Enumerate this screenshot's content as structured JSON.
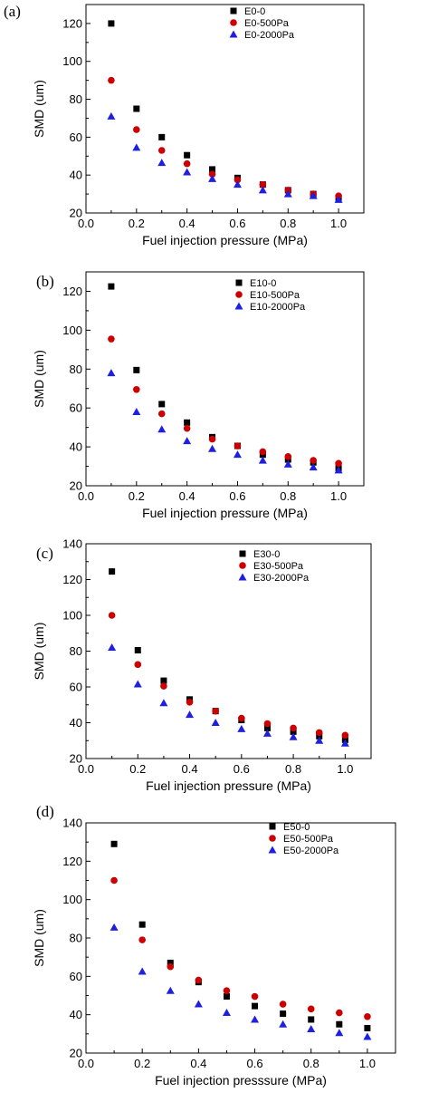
{
  "chart_data": [
    {
      "type": "scatter",
      "panel_label": "(a)",
      "xlabel": "Fuel injection pressure (MPa)",
      "ylabel": "SMD (um)",
      "xlim": [
        0.0,
        1.1
      ],
      "ylim": [
        20,
        130
      ],
      "xticks": [
        "0.0",
        "0.2",
        "0.4",
        "0.6",
        "0.8",
        "1.0"
      ],
      "yticks": [
        "20",
        "40",
        "60",
        "80",
        "100",
        "120"
      ],
      "legend_position": "top-right",
      "x": [
        0.1,
        0.2,
        0.3,
        0.4,
        0.5,
        0.6,
        0.7,
        0.8,
        0.9,
        1.0
      ],
      "series": [
        {
          "name": "E0-0",
          "marker": "square",
          "color": "#000000",
          "values": [
            120,
            75,
            60,
            50.5,
            43,
            38.5,
            35,
            32,
            30,
            28
          ]
        },
        {
          "name": "E0-500Pa",
          "marker": "circle",
          "color": "#cc0000",
          "values": [
            90,
            64,
            53,
            46,
            40.5,
            37.5,
            35,
            32,
            30,
            29
          ]
        },
        {
          "name": "E0-2000Pa",
          "marker": "triangle",
          "color": "#1f1fe0",
          "values": [
            71,
            54.5,
            46.5,
            41.5,
            38,
            35,
            32,
            30,
            29,
            27
          ]
        }
      ]
    },
    {
      "type": "scatter",
      "panel_label": "(b)",
      "xlabel": "Fuel injection pressure (MPa)",
      "ylabel": "SMD (um)",
      "xlim": [
        0.0,
        1.1
      ],
      "ylim": [
        20,
        130
      ],
      "xticks": [
        "0.0",
        "0.2",
        "0.4",
        "0.6",
        "0.8",
        "1.0"
      ],
      "yticks": [
        "20",
        "40",
        "60",
        "80",
        "100",
        "120"
      ],
      "legend_position": "top-right",
      "x": [
        0.1,
        0.2,
        0.3,
        0.4,
        0.5,
        0.6,
        0.7,
        0.8,
        0.9,
        1.0
      ],
      "series": [
        {
          "name": "E10-0",
          "marker": "square",
          "color": "#000000",
          "values": [
            122.5,
            79.5,
            62,
            52.5,
            45,
            40.5,
            36,
            33.5,
            32,
            29
          ]
        },
        {
          "name": "E10-500Pa",
          "marker": "circle",
          "color": "#cc0000",
          "values": [
            95.5,
            69.5,
            57,
            49.5,
            44,
            40.5,
            37.5,
            35,
            33,
            31.5
          ]
        },
        {
          "name": "E10-2000Pa",
          "marker": "triangle",
          "color": "#1f1fe0",
          "values": [
            78,
            58,
            49,
            43,
            39,
            36,
            33,
            31,
            29.5,
            28
          ]
        }
      ]
    },
    {
      "type": "scatter",
      "panel_label": "(c)",
      "xlabel": "Fuel injection pressure (MPa)",
      "ylabel": "SMD (um)",
      "xlim": [
        0.0,
        1.1
      ],
      "ylim": [
        20,
        140
      ],
      "xticks": [
        "0.0",
        "0.2",
        "0.4",
        "0.6",
        "0.8",
        "1.0"
      ],
      "yticks": [
        "20",
        "40",
        "60",
        "80",
        "100",
        "120",
        "140"
      ],
      "legend_position": "top-right",
      "x": [
        0.1,
        0.2,
        0.3,
        0.4,
        0.5,
        0.6,
        0.7,
        0.8,
        0.9,
        1.0
      ],
      "series": [
        {
          "name": "E30-0",
          "marker": "square",
          "color": "#000000",
          "values": [
            124.5,
            80.5,
            63.5,
            53,
            46.5,
            41.5,
            37,
            35,
            32.5,
            30.5
          ]
        },
        {
          "name": "E30-500Pa",
          "marker": "circle",
          "color": "#cc0000",
          "values": [
            100,
            72.5,
            60.5,
            51.5,
            46.5,
            42.5,
            39.5,
            37,
            34.5,
            33
          ]
        },
        {
          "name": "E30-2000Pa",
          "marker": "triangle",
          "color": "#1f1fe0",
          "values": [
            82,
            61.5,
            51,
            44.5,
            40,
            36.5,
            34,
            32,
            30,
            28.5
          ]
        }
      ]
    },
    {
      "type": "scatter",
      "panel_label": "(d)",
      "xlabel": "Fuel injection presssure (MPa)",
      "ylabel": "SMD (um)",
      "xlim": [
        0.0,
        1.1
      ],
      "ylim": [
        20,
        140
      ],
      "xticks": [
        "0.0",
        "0.2",
        "0.4",
        "0.6",
        "0.8",
        "1.0"
      ],
      "yticks": [
        "20",
        "40",
        "60",
        "80",
        "100",
        "120",
        "140"
      ],
      "legend_position": "top-right",
      "x": [
        0.1,
        0.2,
        0.3,
        0.4,
        0.5,
        0.6,
        0.7,
        0.8,
        0.9,
        1.0
      ],
      "series": [
        {
          "name": "E50-0",
          "marker": "square",
          "color": "#000000",
          "values": [
            129,
            87,
            67,
            57,
            49.5,
            44.5,
            40.5,
            37.5,
            35,
            33
          ]
        },
        {
          "name": "E50-500Pa",
          "marker": "circle",
          "color": "#cc0000",
          "values": [
            110,
            79,
            65,
            58,
            52.5,
            49.5,
            45.5,
            43,
            41,
            39
          ]
        },
        {
          "name": "E50-2000Pa",
          "marker": "triangle",
          "color": "#1f1fe0",
          "values": [
            85.5,
            62.5,
            52.5,
            45.5,
            41,
            37.5,
            35,
            32.5,
            30.5,
            28.5
          ]
        }
      ]
    }
  ]
}
